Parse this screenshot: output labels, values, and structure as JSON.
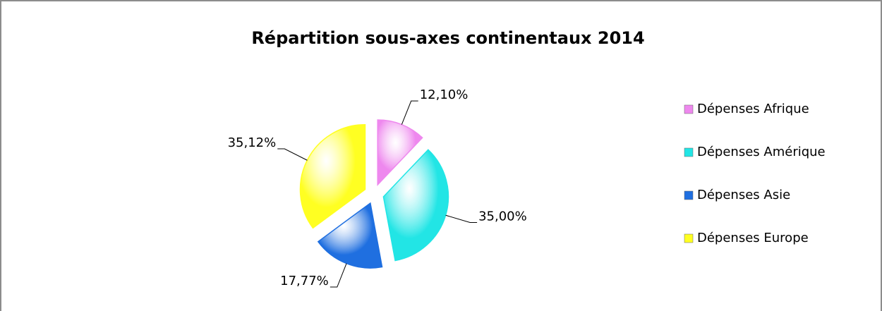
{
  "chart_data": {
    "type": "pie",
    "title": "Répartition sous-axes continentaux 2014",
    "categories": [
      "Dépenses Afrique",
      "Dépenses Amérique",
      "Dépenses Asie",
      "Dépenses Europe"
    ],
    "values": [
      12.1,
      35.0,
      17.77,
      35.12
    ],
    "value_labels": [
      "12,10%",
      "35,00%",
      "17,77%",
      "35,12%"
    ],
    "colors": [
      "#ee88ee",
      "#22e5e5",
      "#1f6fe0",
      "#ffff22"
    ],
    "legend": "right"
  }
}
